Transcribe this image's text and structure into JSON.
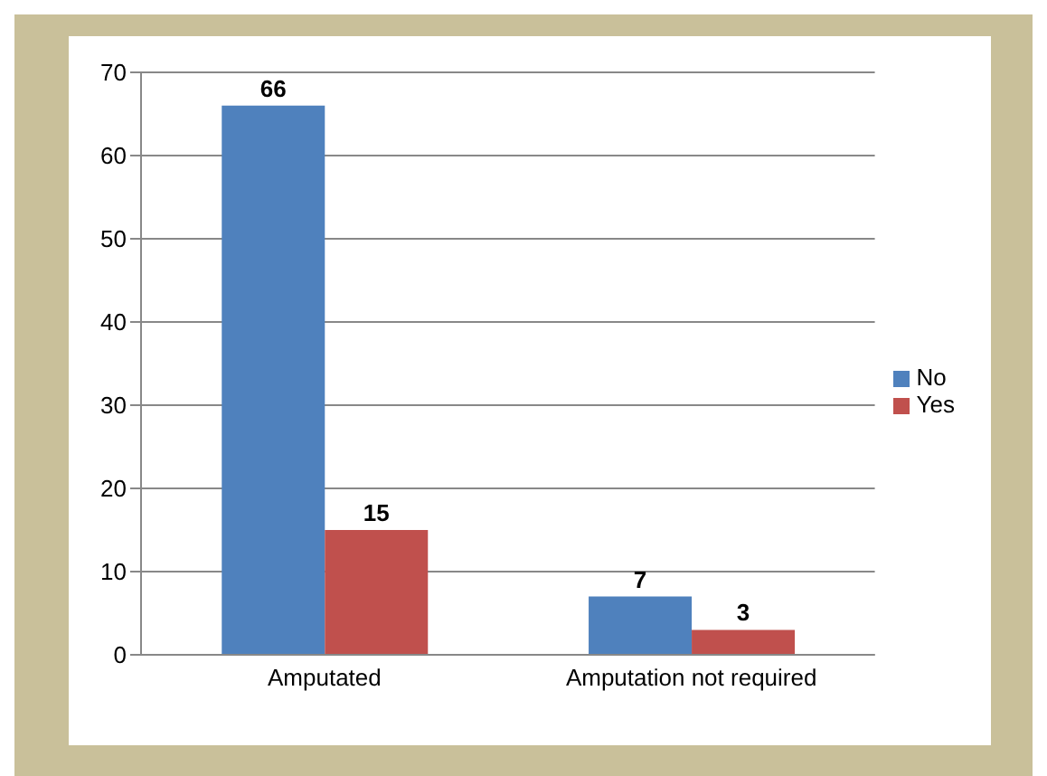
{
  "chart_data": {
    "type": "bar",
    "categories": [
      "Amputated",
      "Amputation  not required"
    ],
    "series": [
      {
        "name": "No",
        "color": "#4f81bd",
        "values": [
          66,
          7
        ]
      },
      {
        "name": "Yes",
        "color": "#c0504d",
        "values": [
          15,
          3
        ]
      }
    ],
    "ylim": [
      0,
      70
    ],
    "yticks": [
      0,
      10,
      20,
      30,
      40,
      50,
      60,
      70
    ],
    "grid": "y",
    "legend": "right",
    "data_labels": true
  }
}
